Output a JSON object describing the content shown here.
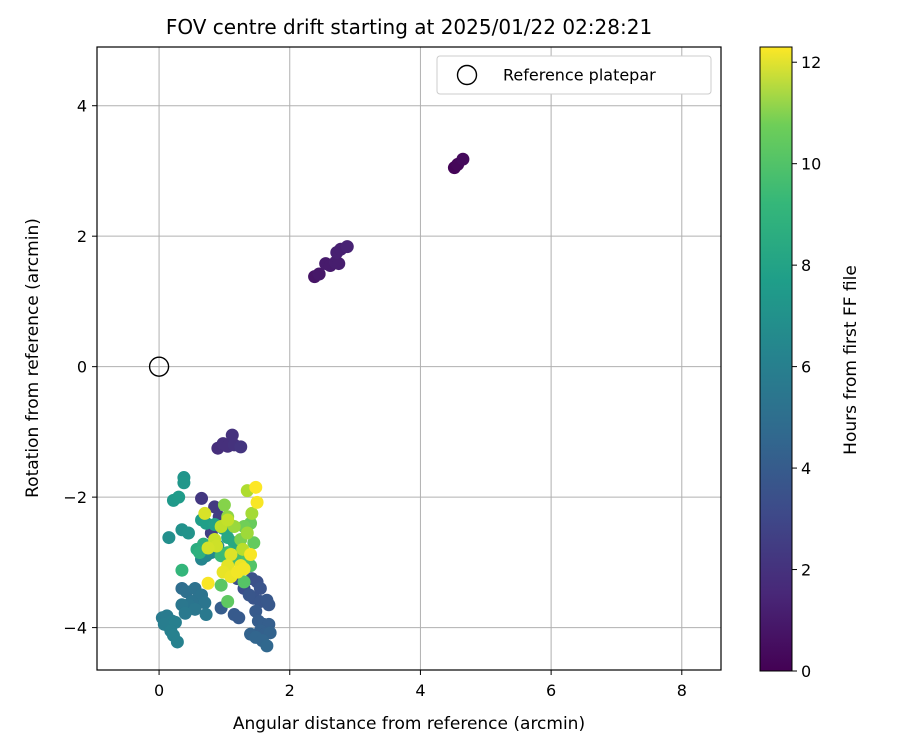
{
  "chart_data": {
    "type": "scatter",
    "title": "FOV centre drift starting at 2025/01/22 02:28:21",
    "xlabel": "Angular distance from reference (arcmin)",
    "ylabel": "Rotation from reference (arcmin)",
    "xlim": [
      -0.95,
      8.6
    ],
    "ylim": [
      -4.65,
      4.9
    ],
    "x_ticks": [
      0,
      2,
      4,
      6,
      8
    ],
    "x_tick_labels": [
      "0",
      "2",
      "4",
      "6",
      "8"
    ],
    "y_ticks": [
      -4,
      -2,
      0,
      2,
      4
    ],
    "y_tick_labels": [
      "−4",
      "−2",
      "0",
      "2",
      "4"
    ],
    "grid": true,
    "legend": {
      "placement": "top-right",
      "entries": [
        "Reference platepar"
      ]
    },
    "reference_point": {
      "x": 0,
      "y": 0,
      "label": "Reference platepar"
    },
    "colorbar": {
      "label": "Hours from first FF file",
      "colormap": "viridis",
      "range": [
        0,
        12.3
      ],
      "ticks": [
        0,
        2,
        4,
        6,
        8,
        10,
        12
      ],
      "tick_labels": [
        "0",
        "2",
        "4",
        "6",
        "8",
        "10",
        "12"
      ]
    },
    "points": [
      {
        "x": 4.52,
        "y": 3.05,
        "c": 0.1
      },
      {
        "x": 4.57,
        "y": 3.1,
        "c": 0.2
      },
      {
        "x": 4.65,
        "y": 3.18,
        "c": 0.3
      },
      {
        "x": 2.38,
        "y": 1.38,
        "c": 0.7
      },
      {
        "x": 2.45,
        "y": 1.42,
        "c": 0.8
      },
      {
        "x": 2.55,
        "y": 1.58,
        "c": 0.9
      },
      {
        "x": 2.62,
        "y": 1.55,
        "c": 0.9
      },
      {
        "x": 2.7,
        "y": 1.6,
        "c": 1.0
      },
      {
        "x": 2.75,
        "y": 1.58,
        "c": 1.0
      },
      {
        "x": 2.72,
        "y": 1.75,
        "c": 1.1
      },
      {
        "x": 2.78,
        "y": 1.8,
        "c": 1.1
      },
      {
        "x": 2.88,
        "y": 1.84,
        "c": 1.2
      },
      {
        "x": 0.9,
        "y": -1.25,
        "c": 1.6
      },
      {
        "x": 0.98,
        "y": -1.18,
        "c": 1.7
      },
      {
        "x": 1.05,
        "y": -1.22,
        "c": 1.7
      },
      {
        "x": 1.12,
        "y": -1.05,
        "c": 1.8
      },
      {
        "x": 1.15,
        "y": -1.2,
        "c": 1.8
      },
      {
        "x": 1.25,
        "y": -1.23,
        "c": 1.9
      },
      {
        "x": 0.65,
        "y": -2.02,
        "c": 2.0
      },
      {
        "x": 0.85,
        "y": -2.15,
        "c": 2.1
      },
      {
        "x": 0.92,
        "y": -2.3,
        "c": 2.2
      },
      {
        "x": 0.8,
        "y": -2.55,
        "c": 2.3
      },
      {
        "x": 1.2,
        "y": -3.25,
        "c": 3.0
      },
      {
        "x": 1.3,
        "y": -3.4,
        "c": 3.0
      },
      {
        "x": 1.42,
        "y": -3.25,
        "c": 3.1
      },
      {
        "x": 1.5,
        "y": -3.3,
        "c": 3.1
      },
      {
        "x": 1.55,
        "y": -3.4,
        "c": 3.2
      },
      {
        "x": 1.45,
        "y": -3.55,
        "c": 3.2
      },
      {
        "x": 1.38,
        "y": -3.5,
        "c": 3.3
      },
      {
        "x": 1.55,
        "y": -3.6,
        "c": 3.3
      },
      {
        "x": 1.65,
        "y": -3.58,
        "c": 3.4
      },
      {
        "x": 1.68,
        "y": -3.65,
        "c": 3.4
      },
      {
        "x": 1.48,
        "y": -3.75,
        "c": 3.5
      },
      {
        "x": 1.15,
        "y": -3.8,
        "c": 3.5
      },
      {
        "x": 1.22,
        "y": -3.85,
        "c": 3.5
      },
      {
        "x": 0.95,
        "y": -3.7,
        "c": 3.6
      },
      {
        "x": 1.52,
        "y": -3.9,
        "c": 3.6
      },
      {
        "x": 1.6,
        "y": -3.95,
        "c": 3.7
      },
      {
        "x": 1.68,
        "y": -3.95,
        "c": 3.7
      },
      {
        "x": 1.55,
        "y": -4.05,
        "c": 3.8
      },
      {
        "x": 1.62,
        "y": -4.1,
        "c": 3.8
      },
      {
        "x": 1.7,
        "y": -4.08,
        "c": 3.9
      },
      {
        "x": 1.4,
        "y": -4.1,
        "c": 3.9
      },
      {
        "x": 1.48,
        "y": -4.15,
        "c": 4.0
      },
      {
        "x": 1.58,
        "y": -4.2,
        "c": 4.0
      },
      {
        "x": 1.65,
        "y": -4.28,
        "c": 4.1
      },
      {
        "x": 0.35,
        "y": -3.4,
        "c": 4.4
      },
      {
        "x": 0.42,
        "y": -3.45,
        "c": 4.5
      },
      {
        "x": 0.55,
        "y": -3.4,
        "c": 4.6
      },
      {
        "x": 0.6,
        "y": -3.55,
        "c": 4.6
      },
      {
        "x": 0.65,
        "y": -3.5,
        "c": 4.7
      },
      {
        "x": 0.5,
        "y": -3.6,
        "c": 4.7
      },
      {
        "x": 0.7,
        "y": -3.62,
        "c": 4.8
      },
      {
        "x": 0.45,
        "y": -3.65,
        "c": 4.8
      },
      {
        "x": 0.35,
        "y": -3.65,
        "c": 4.9
      },
      {
        "x": 0.55,
        "y": -3.72,
        "c": 4.9
      },
      {
        "x": 0.4,
        "y": -3.78,
        "c": 5.0
      },
      {
        "x": 0.72,
        "y": -3.8,
        "c": 5.0
      },
      {
        "x": 0.05,
        "y": -3.85,
        "c": 5.1
      },
      {
        "x": 0.12,
        "y": -3.82,
        "c": 5.1
      },
      {
        "x": 0.2,
        "y": -3.9,
        "c": 5.2
      },
      {
        "x": 0.08,
        "y": -3.95,
        "c": 5.2
      },
      {
        "x": 0.25,
        "y": -3.92,
        "c": 5.3
      },
      {
        "x": 0.18,
        "y": -4.05,
        "c": 5.3
      },
      {
        "x": 0.22,
        "y": -4.12,
        "c": 5.4
      },
      {
        "x": 0.28,
        "y": -4.22,
        "c": 5.4
      },
      {
        "x": 0.65,
        "y": -2.95,
        "c": 5.6
      },
      {
        "x": 0.72,
        "y": -2.9,
        "c": 5.7
      },
      {
        "x": 0.8,
        "y": -2.85,
        "c": 5.8
      },
      {
        "x": 0.9,
        "y": -2.75,
        "c": 5.9
      },
      {
        "x": 0.15,
        "y": -2.62,
        "c": 6.1
      },
      {
        "x": 0.35,
        "y": -2.5,
        "c": 6.2
      },
      {
        "x": 0.45,
        "y": -2.55,
        "c": 6.3
      },
      {
        "x": 0.38,
        "y": -1.7,
        "c": 6.4
      },
      {
        "x": 0.38,
        "y": -1.78,
        "c": 6.5
      },
      {
        "x": 0.22,
        "y": -2.05,
        "c": 6.6
      },
      {
        "x": 0.3,
        "y": -2.0,
        "c": 6.7
      },
      {
        "x": 0.65,
        "y": -2.35,
        "c": 6.8
      },
      {
        "x": 0.72,
        "y": -2.4,
        "c": 6.9
      },
      {
        "x": 0.85,
        "y": -2.42,
        "c": 7.0
      },
      {
        "x": 0.98,
        "y": -2.48,
        "c": 7.1
      },
      {
        "x": 1.1,
        "y": -2.45,
        "c": 7.2
      },
      {
        "x": 1.05,
        "y": -2.62,
        "c": 7.3
      },
      {
        "x": 1.15,
        "y": -2.7,
        "c": 7.4
      },
      {
        "x": 0.58,
        "y": -2.8,
        "c": 7.6
      },
      {
        "x": 0.68,
        "y": -2.72,
        "c": 7.7
      },
      {
        "x": 0.62,
        "y": -2.85,
        "c": 7.8
      },
      {
        "x": 0.35,
        "y": -3.12,
        "c": 8.1
      },
      {
        "x": 0.95,
        "y": -2.9,
        "c": 8.3
      },
      {
        "x": 1.05,
        "y": -2.85,
        "c": 8.4
      },
      {
        "x": 1.15,
        "y": -2.95,
        "c": 8.5
      },
      {
        "x": 1.25,
        "y": -2.85,
        "c": 8.6
      },
      {
        "x": 1.35,
        "y": -2.95,
        "c": 8.8
      },
      {
        "x": 1.4,
        "y": -3.05,
        "c": 8.9
      },
      {
        "x": 1.3,
        "y": -3.3,
        "c": 9.0
      },
      {
        "x": 0.95,
        "y": -3.35,
        "c": 9.1
      },
      {
        "x": 1.05,
        "y": -3.6,
        "c": 9.2
      },
      {
        "x": 1.45,
        "y": -2.7,
        "c": 9.3
      },
      {
        "x": 1.4,
        "y": -2.4,
        "c": 9.4
      },
      {
        "x": 1.3,
        "y": -2.45,
        "c": 9.6
      },
      {
        "x": 1.25,
        "y": -2.65,
        "c": 9.8
      },
      {
        "x": 1.0,
        "y": -2.12,
        "c": 10.0
      },
      {
        "x": 1.05,
        "y": -2.3,
        "c": 10.2
      },
      {
        "x": 1.15,
        "y": -2.45,
        "c": 10.4
      },
      {
        "x": 1.35,
        "y": -2.55,
        "c": 10.5
      },
      {
        "x": 1.42,
        "y": -2.25,
        "c": 10.6
      },
      {
        "x": 1.35,
        "y": -1.9,
        "c": 10.8
      },
      {
        "x": 1.28,
        "y": -2.8,
        "c": 11.0
      },
      {
        "x": 0.95,
        "y": -2.45,
        "c": 11.1
      },
      {
        "x": 1.05,
        "y": -2.35,
        "c": 11.2
      },
      {
        "x": 0.85,
        "y": -2.65,
        "c": 11.3
      },
      {
        "x": 0.88,
        "y": -2.75,
        "c": 11.4
      },
      {
        "x": 0.75,
        "y": -2.78,
        "c": 11.5
      },
      {
        "x": 0.7,
        "y": -2.25,
        "c": 11.6
      },
      {
        "x": 1.1,
        "y": -2.88,
        "c": 11.7
      },
      {
        "x": 1.05,
        "y": -3.05,
        "c": 11.8
      },
      {
        "x": 0.98,
        "y": -3.15,
        "c": 11.9
      },
      {
        "x": 1.1,
        "y": -3.22,
        "c": 12.0
      },
      {
        "x": 1.25,
        "y": -3.05,
        "c": 12.0
      },
      {
        "x": 1.2,
        "y": -3.15,
        "c": 12.1
      },
      {
        "x": 1.3,
        "y": -3.1,
        "c": 12.1
      },
      {
        "x": 1.4,
        "y": -2.88,
        "c": 12.2
      },
      {
        "x": 0.75,
        "y": -3.32,
        "c": 12.2
      },
      {
        "x": 1.5,
        "y": -2.08,
        "c": 12.2
      },
      {
        "x": 1.48,
        "y": -1.85,
        "c": 12.3
      }
    ]
  }
}
